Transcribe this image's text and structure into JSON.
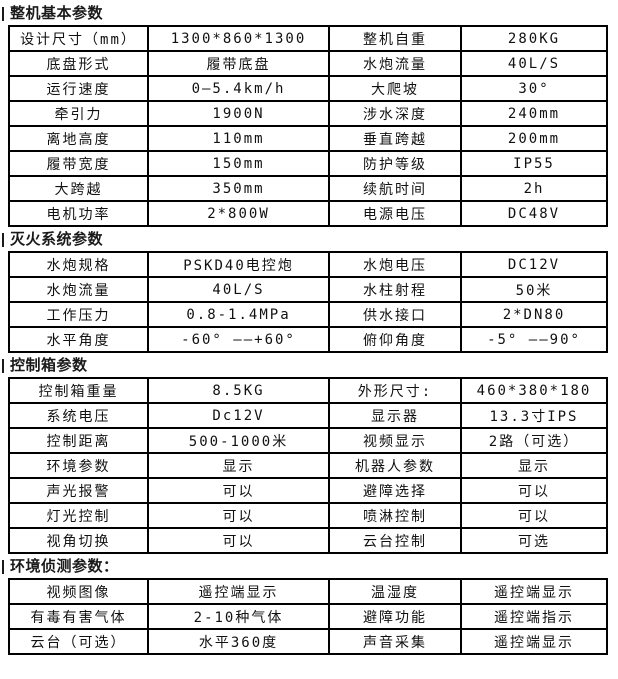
{
  "page": {
    "background_color": "#ffffff",
    "table_border_color": "#000000",
    "header_bar_color": "#1a1a1a",
    "text_color": "#111111"
  },
  "sections": [
    {
      "title": "整机基本参数",
      "rows": [
        [
          "设计尺寸（mm）",
          "1300*860*1300",
          "整机自重",
          "280KG"
        ],
        [
          "底盘形式",
          "履带底盘",
          "水炮流量",
          "40L/S"
        ],
        [
          "运行速度",
          "0—5.4km/h",
          "大爬坡",
          "30°"
        ],
        [
          "牵引力",
          "1900N",
          "涉水深度",
          "240mm"
        ],
        [
          "离地高度",
          "110mm",
          "垂直跨越",
          "200mm"
        ],
        [
          "履带宽度",
          "150mm",
          "防护等级",
          "IP55"
        ],
        [
          "大跨越",
          "350mm",
          "续航时间",
          "2h"
        ],
        [
          "电机功率",
          "2*800W",
          "电源电压",
          "DC48V"
        ]
      ]
    },
    {
      "title": "灭火系统参数",
      "rows": [
        [
          "水炮规格",
          "PSKD40电控炮",
          "水炮电压",
          "DC12V"
        ],
        [
          "水炮流量",
          "40L/S",
          "水柱射程",
          "50米"
        ],
        [
          "工作压力",
          "0.8-1.4MPa",
          "供水接口",
          "2*DN80"
        ],
        [
          "水平角度",
          "-60° ——+60°",
          "俯仰角度",
          "-5° ——90°"
        ]
      ]
    },
    {
      "title": "控制箱参数",
      "rows": [
        [
          "控制箱重量",
          "8.5KG",
          "外形尺寸:",
          "460*380*180"
        ],
        [
          "系统电压",
          "Dc12V",
          "显示器",
          "13.3寸IPS"
        ],
        [
          "控制距离",
          "500-1000米",
          "视频显示",
          "2路（可选）"
        ],
        [
          "环境参数",
          "显示",
          "机器人参数",
          "显示"
        ],
        [
          "声光报警",
          "可以",
          "避障选择",
          "可以"
        ],
        [
          "灯光控制",
          "可以",
          "喷淋控制",
          "可以"
        ],
        [
          "视角切换",
          "可以",
          "云台控制",
          "可选"
        ]
      ]
    },
    {
      "title": "环境侦测参数：",
      "rows": [
        [
          "视频图像",
          "遥控端显示",
          "温湿度",
          "遥控端显示"
        ],
        [
          "有毒有害气体",
          "2-10种气体",
          "避障功能",
          "遥控端指示"
        ],
        [
          "云台（可选）",
          "水平360度",
          "声音采集",
          "遥控端显示"
        ]
      ]
    }
  ]
}
